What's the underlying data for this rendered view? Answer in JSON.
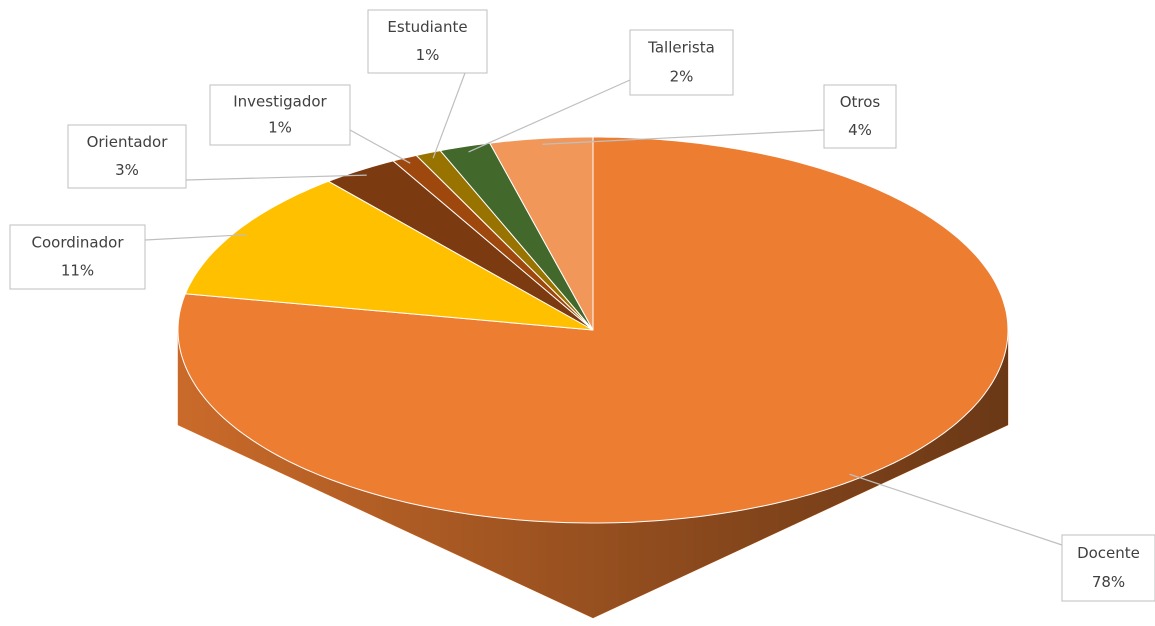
{
  "chart_data": {
    "type": "pie3d",
    "categories": [
      "Docente",
      "Coordinador",
      "Orientador",
      "Investigador",
      "Estudiante",
      "Tallerista",
      "Otros"
    ],
    "values": [
      78,
      11,
      3,
      1,
      1,
      2,
      4
    ],
    "value_labels": [
      "78%",
      "11%",
      "3%",
      "1%",
      "1%",
      "2%",
      "4%"
    ],
    "colors": [
      "#ED7D31",
      "#FFC000",
      "#7B3A10",
      "#9E480E",
      "#997300",
      "#43682B",
      "#F1975A"
    ]
  }
}
